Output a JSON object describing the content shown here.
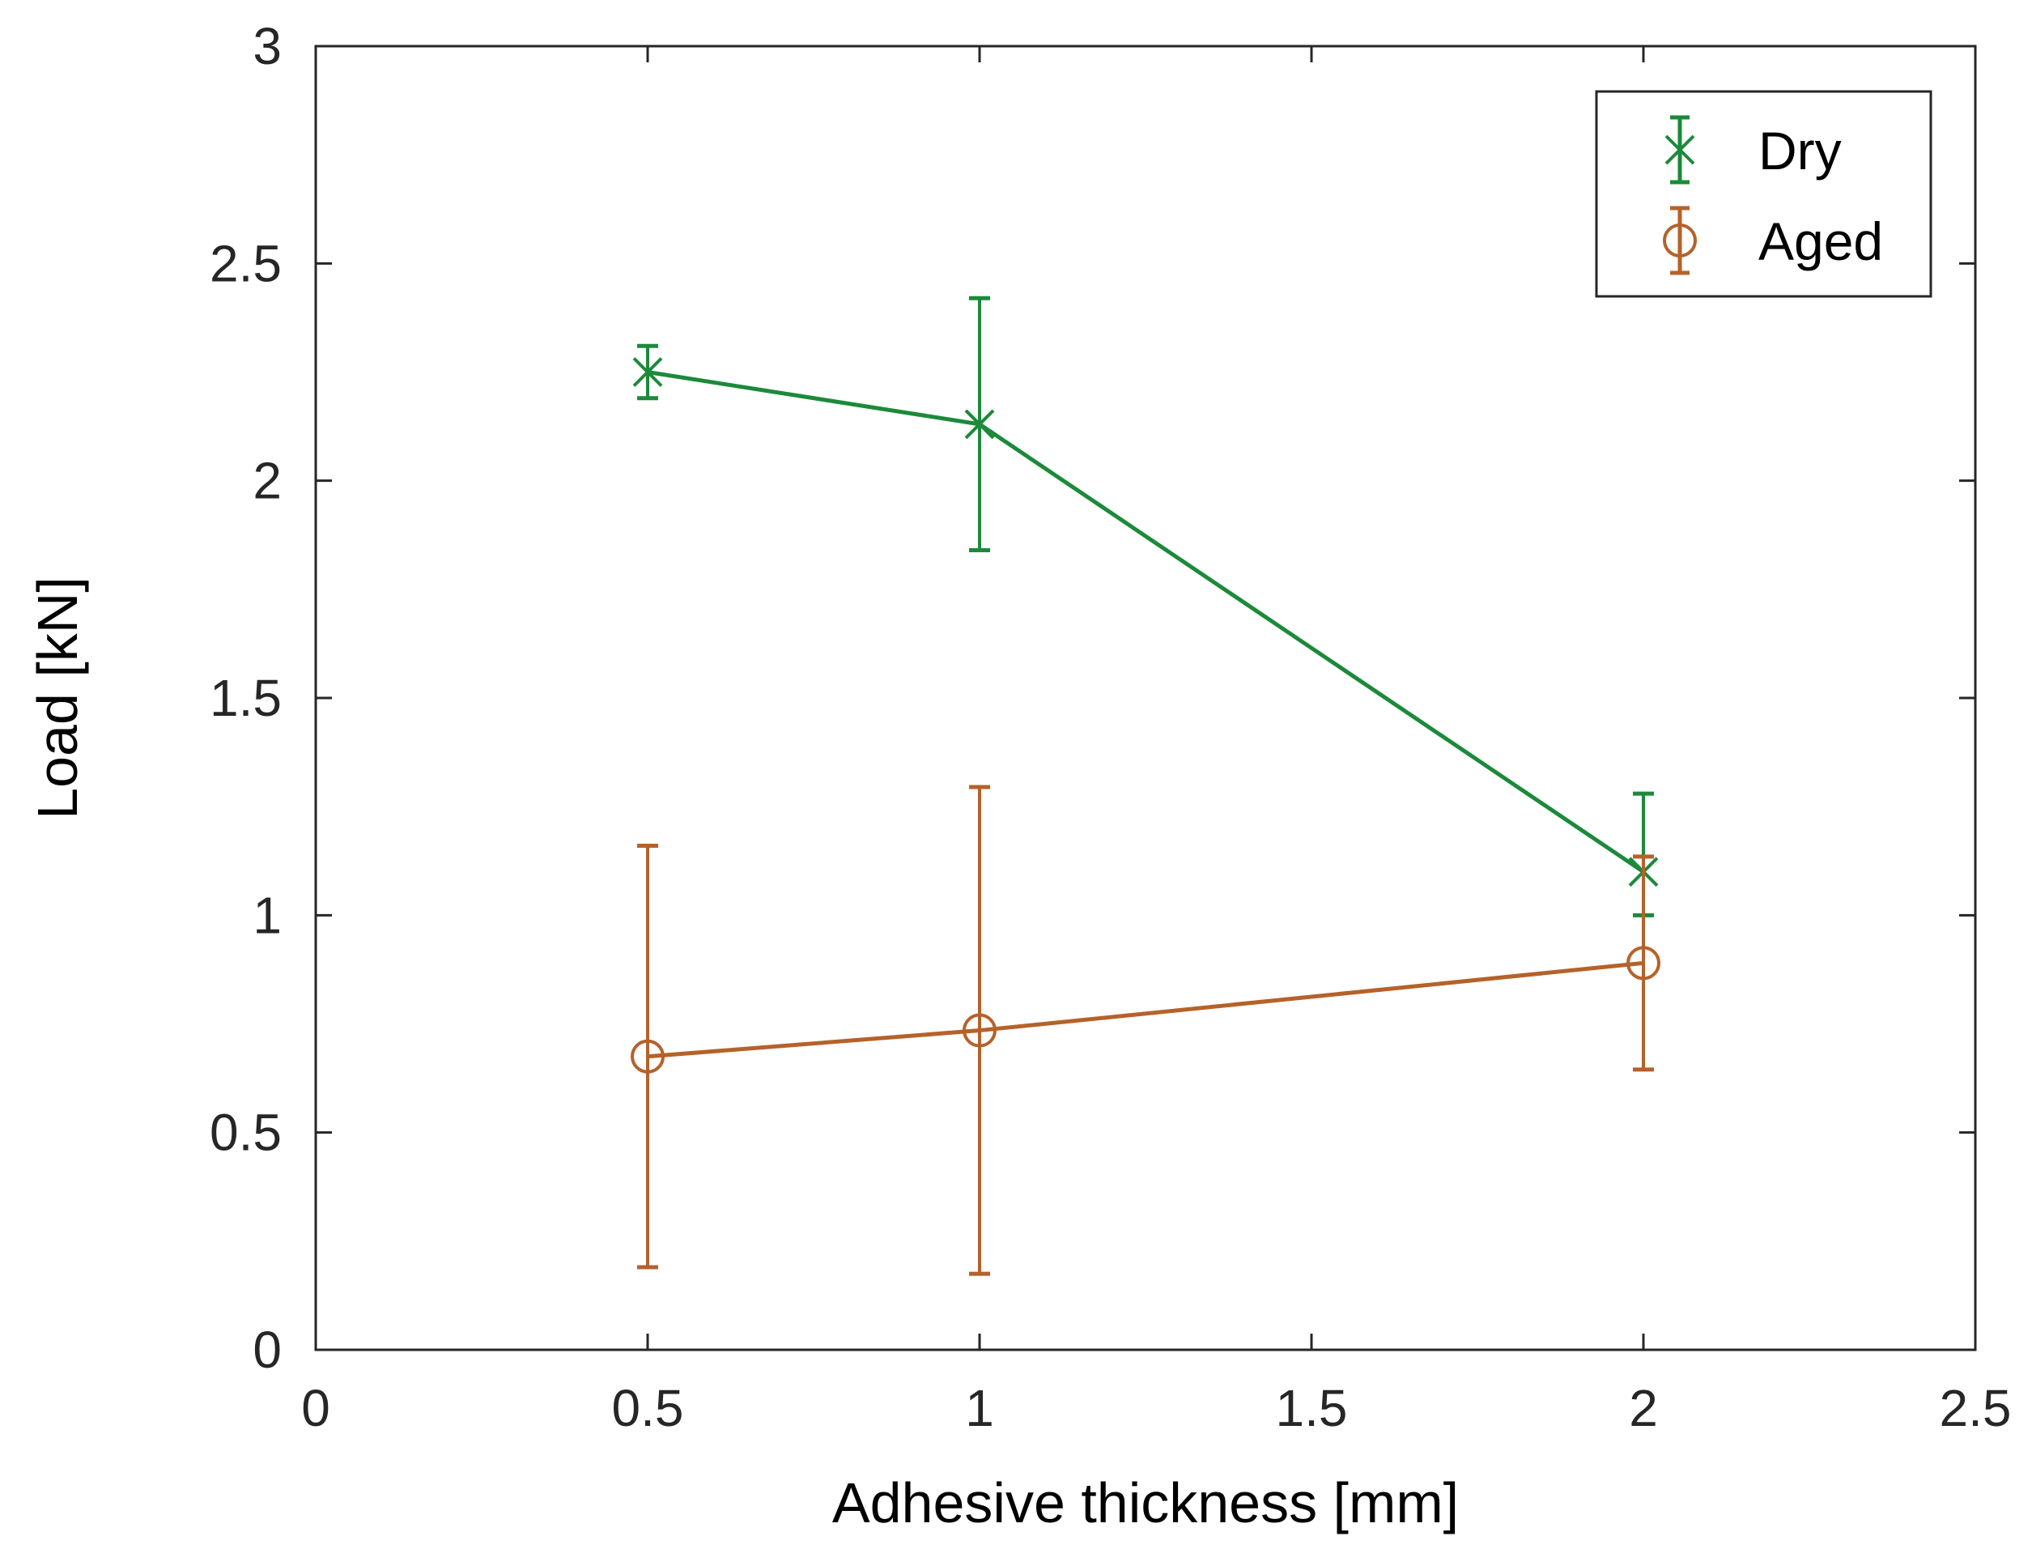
{
  "chart_data": {
    "type": "line",
    "title": "",
    "xlabel": "Adhesive thickness [mm]",
    "ylabel": "Load [kN]",
    "xlim": [
      0,
      2.5
    ],
    "ylim": [
      0,
      3
    ],
    "xticks": [
      "0",
      "0.5",
      "1",
      "1.5",
      "2",
      "2.5"
    ],
    "yticks": [
      "0",
      "0.5",
      "1",
      "1.5",
      "2",
      "2.5",
      "3"
    ],
    "grid": false,
    "legend_position": "top-right",
    "series": [
      {
        "name": "Dry",
        "marker": "x",
        "color": "#1b8a3a",
        "x": [
          0.5,
          1,
          2
        ],
        "y": [
          2.25,
          2.13,
          1.1
        ],
        "err_low": [
          0.06,
          0.29,
          0.1
        ],
        "err_high": [
          0.06,
          0.29,
          0.18
        ]
      },
      {
        "name": "Aged",
        "marker": "o",
        "color": "#b5622a",
        "x": [
          0.5,
          1,
          2
        ],
        "y": [
          0.675,
          0.735,
          0.89
        ],
        "err_low": [
          0.485,
          0.56,
          0.245
        ],
        "err_high": [
          0.485,
          0.56,
          0.245
        ]
      }
    ]
  }
}
